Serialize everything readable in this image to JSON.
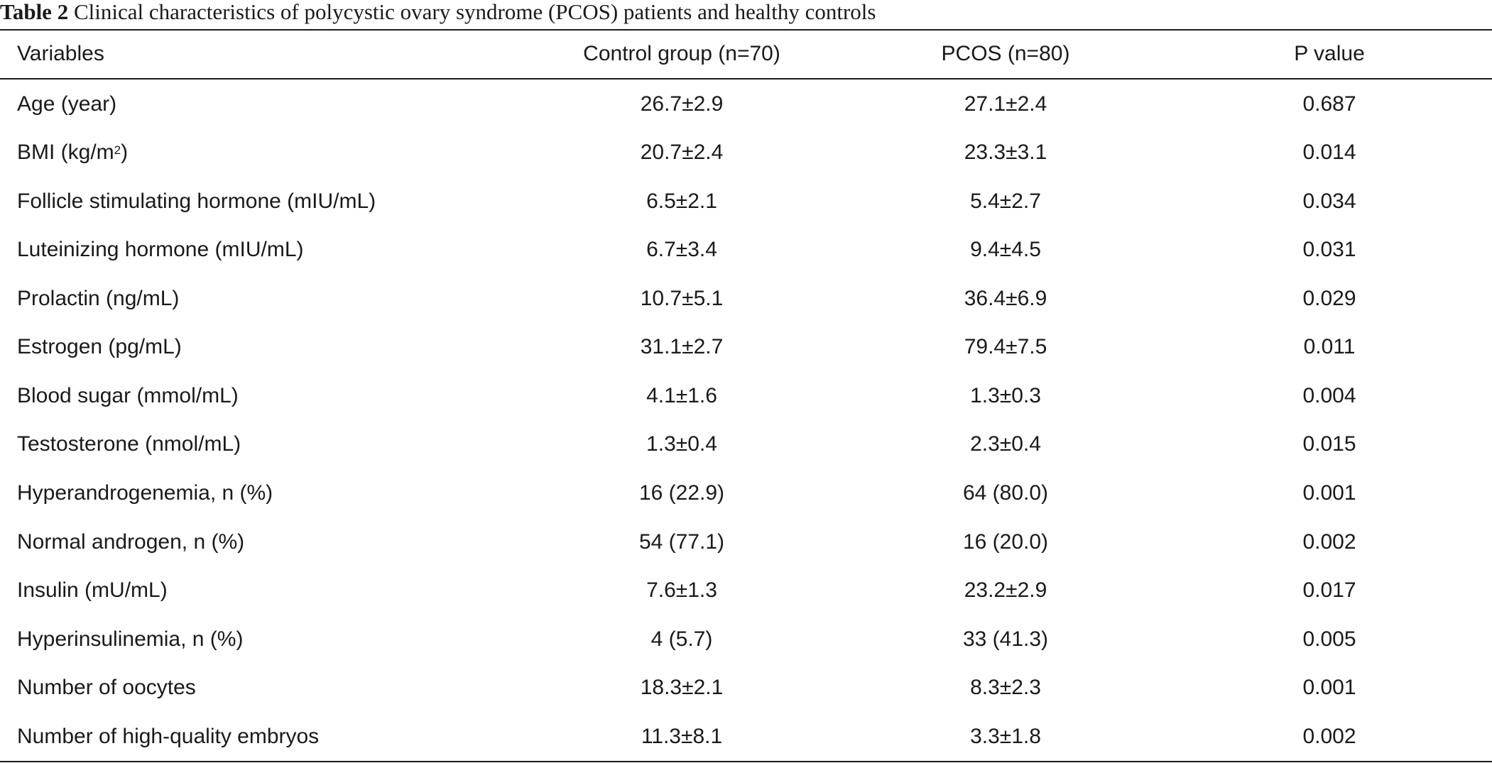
{
  "caption": {
    "label": "Table 2",
    "text": "Clinical characteristics of polycystic ovary syndrome (PCOS) patients and healthy controls"
  },
  "table": {
    "headers": [
      "Variables",
      "Control group (n=70)",
      "PCOS (n=80)",
      "P value"
    ],
    "rows": [
      {
        "variable": "Age (year)",
        "control": "26.7±2.9",
        "pcos": "27.1±2.4",
        "p": "0.687"
      },
      {
        "variable": "BMI (kg/m",
        "variable_sup": "2",
        "variable_suffix": ")",
        "control": "20.7±2.4",
        "pcos": "23.3±3.1",
        "p": "0.014"
      },
      {
        "variable": "Follicle stimulating hormone (mIU/mL)",
        "control": "6.5±2.1",
        "pcos": "5.4±2.7",
        "p": "0.034"
      },
      {
        "variable": "Luteinizing hormone (mIU/mL)",
        "control": "6.7±3.4",
        "pcos": "9.4±4.5",
        "p": "0.031"
      },
      {
        "variable": "Prolactin (ng/mL)",
        "control": "10.7±5.1",
        "pcos": "36.4±6.9",
        "p": "0.029"
      },
      {
        "variable": "Estrogen (pg/mL)",
        "control": "31.1±2.7",
        "pcos": "79.4±7.5",
        "p": "0.011"
      },
      {
        "variable": "Blood sugar (mmol/mL)",
        "control": "4.1±1.6",
        "pcos": "1.3±0.3",
        "p": "0.004"
      },
      {
        "variable": "Testosterone (nmol/mL)",
        "control": "1.3±0.4",
        "pcos": "2.3±0.4",
        "p": "0.015"
      },
      {
        "variable": "Hyperandrogenemia, n (%)",
        "control": "16 (22.9)",
        "pcos": "64 (80.0)",
        "p": "0.001"
      },
      {
        "variable": "Normal androgen, n (%)",
        "control": "54 (77.1)",
        "pcos": "16 (20.0)",
        "p": "0.002"
      },
      {
        "variable": "Insulin (mU/mL)",
        "control": "7.6±1.3",
        "pcos": "23.2±2.9",
        "p": "0.017"
      },
      {
        "variable": "Hyperinsulinemia, n (%)",
        "control": "4 (5.7)",
        "pcos": "33 (41.3)",
        "p": "0.005"
      },
      {
        "variable": "Number of oocytes",
        "control": "18.3±2.1",
        "pcos": "8.3±2.3",
        "p": "0.001"
      },
      {
        "variable": "Number of high-quality embryos",
        "control": "11.3±8.1",
        "pcos": "3.3±1.8",
        "p": "0.002"
      }
    ]
  }
}
